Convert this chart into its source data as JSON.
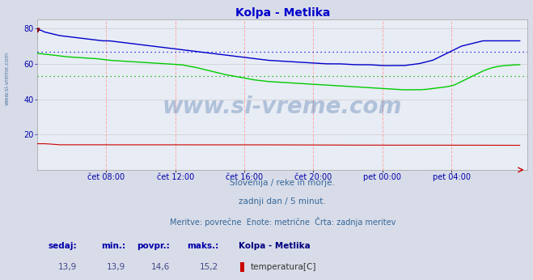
{
  "title": "Kolpa - Metlika",
  "title_color": "#0000cc",
  "bg_color": "#d8dce8",
  "plot_bg_color": "#e8ecf4",
  "grid_color_v": "#ffaaaa",
  "grid_color_h": "#cccccc",
  "avg_color_blue": "#0000ff",
  "avg_color_green": "#00aa00",
  "xlabel_color": "#0000aa",
  "ymin": 0,
  "ymax": 85,
  "yticks": [
    20,
    40,
    60,
    80
  ],
  "xtick_labels": [
    "čet 08:00",
    "čet 12:00",
    "čet 16:00",
    "čet 20:00",
    "pet 00:00",
    "pet 04:00"
  ],
  "xtick_positions": [
    96,
    192,
    288,
    384,
    480,
    576
  ],
  "n_points": 672,
  "xmin": 0,
  "xmax": 672,
  "temp_color": "#cc0000",
  "flow_color": "#00cc00",
  "height_color": "#0000cc",
  "temp_avg": 14.6,
  "flow_avg": 52.9,
  "height_avg": 67,
  "temp_min": 13.9,
  "flow_min": 45.3,
  "height_min": 59,
  "temp_max": 15.2,
  "flow_max": 65.9,
  "height_max": 79,
  "temp_now": 13.9,
  "flow_now": 59.5,
  "height_now": 73,
  "watermark": "www.si-vreme.com",
  "watermark_color": "#3060a0",
  "watermark_alpha": 0.3,
  "subtitle1": "Slovenija / reke in morje.",
  "subtitle2": "zadnji dan / 5 minut.",
  "subtitle3": "Meritve: povrečne  Enote: metrične  Črta: zadnja meritev",
  "subtitle_color": "#336699",
  "legend_title": "Kolpa - Metlika",
  "legend_title_color": "#000080",
  "table_label_color": "#0000aa",
  "table_value_color": "#444488"
}
